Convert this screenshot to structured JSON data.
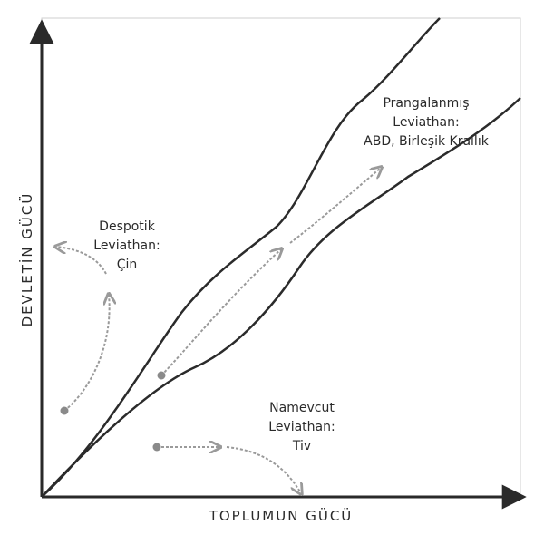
{
  "axes": {
    "x_label": "TOPLUMUN GÜCÜ",
    "y_label": "DEVLETİN GÜCÜ"
  },
  "regions": {
    "despotic": {
      "lines": [
        "Despotik",
        "Leviathan:",
        "Çin"
      ]
    },
    "shackled": {
      "lines": [
        "Prangalanmış",
        "Leviathan:",
        "ABD, Birleşik Krallık"
      ]
    },
    "absent": {
      "lines": [
        "Namevcut",
        "Leviathan:",
        "Tiv"
      ]
    }
  },
  "colors": {
    "axis": "#2a2a2a",
    "boundary": "#2b2b2b",
    "arrow": "#9a9a9a"
  }
}
